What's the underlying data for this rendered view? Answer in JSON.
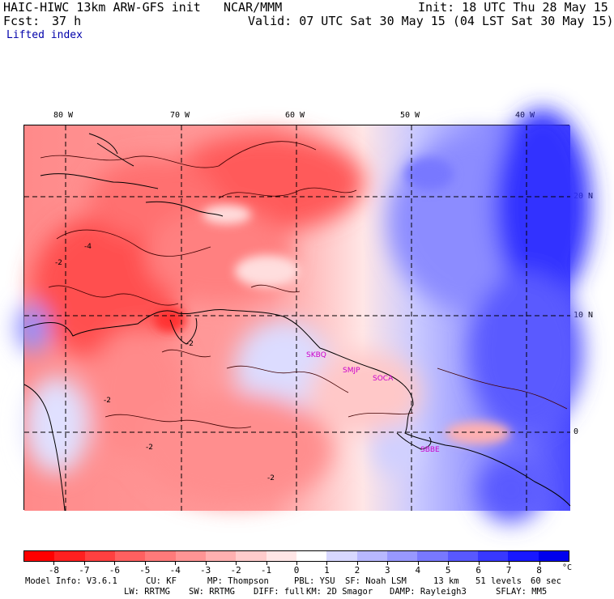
{
  "header": {
    "model_line": "HAIC-HIWC 13km ARW-GFS init",
    "org": "NCAR/MMM",
    "init": "Init: 18 UTC Thu 28 May 15",
    "fcst_label": "Fcst:",
    "fcst_value": "37 h",
    "valid": "Valid: 07 UTC Sat 30 May 15 (04 LST Sat 30 May 15)",
    "field": "Lifted index"
  },
  "map": {
    "lon_labels": [
      "80 W",
      "70 W",
      "60 W",
      "50 W",
      "40 W"
    ],
    "lat_labels": [
      "20 N",
      "10 N",
      "0"
    ],
    "stations": [
      "SKBQ",
      "SMJP",
      "SOCA",
      "SBBE"
    ],
    "contour_labels": [
      "-2",
      "-4",
      "-2",
      "-2",
      "-2",
      "-2"
    ]
  },
  "colorbar": {
    "labels": [
      "-8",
      "-7",
      "-6",
      "-5",
      "-4",
      "-3",
      "-2",
      "-1",
      "0",
      "1",
      "2",
      "3",
      "4",
      "5",
      "6",
      "7",
      "8"
    ],
    "unit": "°C",
    "colors": [
      "#ff0000",
      "#ff2020",
      "#ff4040",
      "#ff6060",
      "#ff7a7a",
      "#ff9494",
      "#ffb0b0",
      "#ffcccc",
      "#ffe6e6",
      "#ffffff",
      "#d8d8ff",
      "#b8b8ff",
      "#9898ff",
      "#7878ff",
      "#5858ff",
      "#3838ff",
      "#1818ff",
      "#0000ee"
    ]
  },
  "footer": {
    "line1": [
      "Model Info: V3.6.1",
      "CU: KF",
      "MP: Thompson",
      "PBL: YSU",
      "SF: Noah LSM",
      "13 km",
      "51 levels",
      "60 sec"
    ],
    "line2": [
      "LW: RRTMG",
      "SW: RRTMG",
      "DIFF: full",
      "KM: 2D Smagor",
      "DAMP: Rayleigh3",
      "SFLAY: MM5"
    ]
  }
}
